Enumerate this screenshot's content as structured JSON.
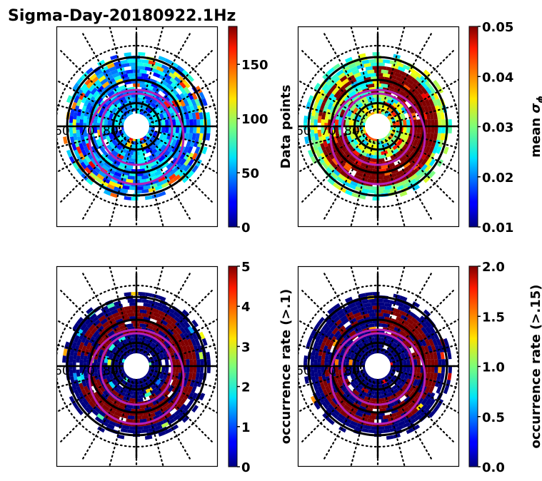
{
  "figure": {
    "title": "Sigma-Day-20180922.1Hz"
  },
  "chart_data": [
    {
      "type": "heatmap",
      "projection": "polar (magnetic latitude / MLT)",
      "panel": "top-left",
      "title": "",
      "colorbar": {
        "label": "Data points",
        "label_symbol": "",
        "range": [
          0,
          185
        ],
        "ticks": [
          0,
          50,
          100,
          150
        ],
        "tick_labels": [
          "0",
          "50",
          "100",
          "150"
        ],
        "colormap": "jet"
      },
      "lat_labels": [
        "60",
        "70",
        "80"
      ],
      "lat_circles_deg": [
        60,
        70,
        80
      ],
      "dotted_circles_deg": [
        55,
        85
      ],
      "value_character": "mostly 10-80 points per bin, rare bins up to ~170 (orange/red arcs on dawn/dusk outer rings)",
      "overlays": [
        "two magenta auroral oval circles"
      ]
    },
    {
      "type": "heatmap",
      "projection": "polar (magnetic latitude / MLT)",
      "panel": "top-right",
      "title": "",
      "colorbar": {
        "label": "mean ",
        "label_symbol": "σ",
        "label_sub": "ϕ",
        "range": [
          0.01,
          0.05
        ],
        "ticks": [
          0.01,
          0.02,
          0.03,
          0.04,
          0.05
        ],
        "tick_labels": [
          "0.01",
          "0.02",
          "0.03",
          "0.04",
          "0.05"
        ],
        "colormap": "jet"
      },
      "lat_labels": [
        "60",
        "70",
        "80"
      ],
      "lat_circles_deg": [
        60,
        70,
        80
      ],
      "dotted_circles_deg": [
        55,
        85
      ],
      "value_character": "outer rings ~0.025-0.035; auroral oval band (65-75°) saturated ~0.05, strongest on dusk/night side",
      "overlays": [
        "two magenta auroral oval circles"
      ]
    },
    {
      "type": "heatmap",
      "projection": "polar (magnetic latitude / MLT)",
      "panel": "bottom-left",
      "title": "",
      "colorbar": {
        "label": "occurrence rate (>.1)",
        "label_symbol": "",
        "range": [
          0,
          5
        ],
        "ticks": [
          0,
          1,
          2,
          3,
          4,
          5
        ],
        "tick_labels": [
          "0",
          "1",
          "2",
          "3",
          "4",
          "5"
        ],
        "colormap": "jet"
      },
      "lat_labels": [
        "60",
        "70",
        "80"
      ],
      "lat_circles_deg": [
        60,
        70,
        80
      ],
      "dotted_circles_deg": [
        55,
        85
      ],
      "value_character": "mostly 0; saturated (>=5) bins in auroral oval band 65-75°, scattered 1-3 values",
      "overlays": [
        "two magenta auroral oval circles"
      ]
    },
    {
      "type": "heatmap",
      "projection": "polar (magnetic latitude / MLT)",
      "panel": "bottom-right",
      "title": "",
      "colorbar": {
        "label": "occurrence rate (>.15)",
        "label_symbol": "",
        "range": [
          0.0,
          2.0
        ],
        "ticks": [
          0.0,
          0.5,
          1.0,
          1.5,
          2.0
        ],
        "tick_labels": [
          "0.0",
          "0.5",
          "1.0",
          "1.5",
          "2.0"
        ],
        "colormap": "jet"
      },
      "lat_labels": [
        "60",
        "70",
        "80"
      ],
      "lat_circles_deg": [
        60,
        70,
        80
      ],
      "dotted_circles_deg": [
        55,
        85
      ],
      "value_character": "mostly 0; saturated (>=2) bins in auroral oval band 65-72°, few yellow/orange bins",
      "overlays": [
        "two magenta auroral oval circles"
      ]
    }
  ]
}
